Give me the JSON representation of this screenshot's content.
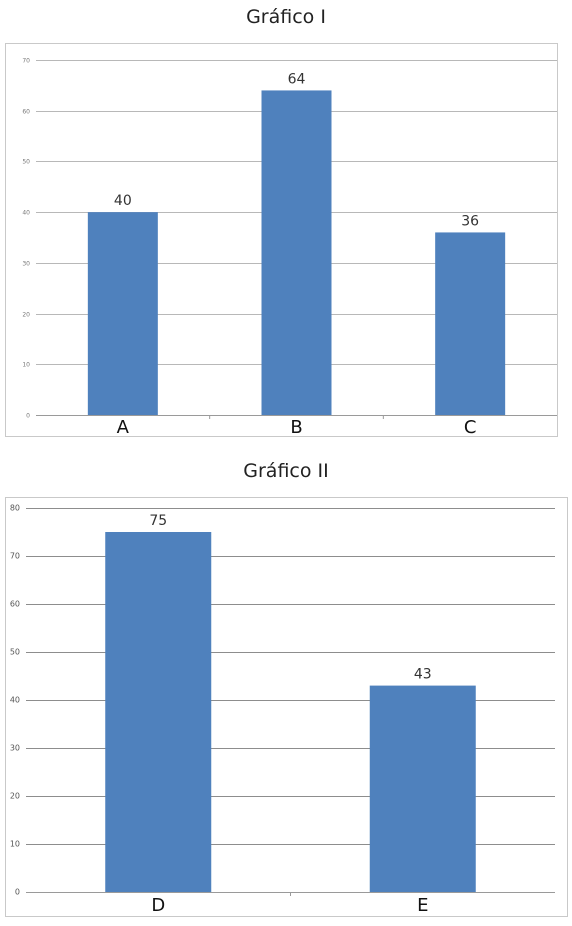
{
  "chart_data": [
    {
      "type": "bar",
      "title": "Gráfico I",
      "categories": [
        "A",
        "B",
        "C"
      ],
      "values": [
        40,
        64,
        36
      ],
      "ylim": [
        0,
        70
      ],
      "yticks": [
        "0",
        "10",
        "20",
        "30",
        "40",
        "50",
        "60",
        "70"
      ],
      "grid": true,
      "bar_color": "#4f81bd"
    },
    {
      "type": "bar",
      "title": "Gráfico II",
      "categories": [
        "D",
        "E"
      ],
      "values": [
        75,
        43
      ],
      "ylim": [
        0,
        80
      ],
      "yticks": [
        "0",
        "10",
        "20",
        "30",
        "40",
        "50",
        "60",
        "70",
        "80"
      ],
      "grid": true,
      "bar_color": "#4f81bd"
    }
  ]
}
